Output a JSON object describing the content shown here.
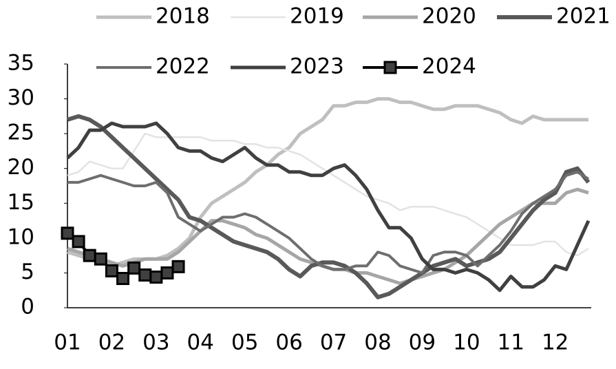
{
  "chart_data": {
    "type": "line",
    "categories": [
      "01",
      null,
      null,
      null,
      "02",
      null,
      null,
      null,
      "03",
      null,
      null,
      null,
      "04",
      null,
      null,
      null,
      "05",
      null,
      null,
      null,
      "06",
      null,
      null,
      null,
      "07",
      null,
      null,
      null,
      "08",
      null,
      null,
      null,
      "09",
      null,
      null,
      null,
      "10",
      null,
      null,
      null,
      "11",
      null,
      null,
      null,
      "12",
      null,
      null,
      null
    ],
    "series": [
      {
        "name": "2018",
        "color": "#bfbfbf",
        "values": [
          8,
          7.5,
          7,
          6.5,
          6,
          6.5,
          7,
          7,
          7,
          7.5,
          8.5,
          10,
          13,
          15,
          16,
          17,
          18,
          19.5,
          20.5,
          22,
          23,
          25,
          26,
          27,
          29,
          29,
          29.5,
          29.5,
          30,
          30,
          29.5,
          29.5,
          29,
          28.5,
          28.5,
          29,
          29,
          29,
          28.5,
          28,
          27,
          26.5,
          27.5,
          27,
          27,
          27,
          27,
          27
        ]
      },
      {
        "name": "2019",
        "color": "#e3e3e3",
        "values": [
          19,
          19.5,
          21,
          20.5,
          20,
          20,
          22.5,
          25,
          24.5,
          24.5,
          24.5,
          24.5,
          24.5,
          24,
          24,
          24,
          23.5,
          23.5,
          23,
          23,
          22.5,
          22,
          21,
          20,
          19,
          18,
          17,
          16,
          15.5,
          15,
          14,
          14.5,
          14.5,
          14.5,
          14,
          13.5,
          13,
          12,
          11,
          10,
          9,
          9,
          9,
          9.5,
          9.5,
          8,
          7.5,
          8.5
        ]
      },
      {
        "name": "2020",
        "color": "#a6a6a6",
        "values": [
          8.5,
          8,
          7.5,
          7,
          6.5,
          6,
          6.5,
          7,
          7,
          7,
          8,
          9.5,
          11,
          12.5,
          12.5,
          12,
          11.5,
          10.5,
          10,
          9,
          8,
          7,
          6.5,
          6,
          5.5,
          5.5,
          5,
          5,
          4.5,
          4,
          3.5,
          4,
          4.5,
          5,
          5.5,
          6.5,
          7.5,
          9,
          10.5,
          12,
          13,
          14,
          15,
          15,
          15,
          16.5,
          17,
          16.5
        ]
      },
      {
        "name": "2021",
        "color": "#595959",
        "values": [
          27,
          27.5,
          27,
          26,
          24.5,
          23,
          21.5,
          20,
          18.5,
          17,
          15.5,
          13,
          12.5,
          11.5,
          10.5,
          9.5,
          9,
          8.5,
          8,
          7,
          5.5,
          4.5,
          6,
          6.5,
          6.5,
          6,
          5,
          3.5,
          1.5,
          2,
          3,
          4,
          5,
          6,
          6.5,
          7,
          6,
          6.5,
          7,
          8,
          10,
          12,
          14,
          15.5,
          16.5,
          19.5,
          20,
          18
        ]
      },
      {
        "name": "2022",
        "color": "#6e6e6e",
        "values": [
          18,
          18,
          18.5,
          19,
          18.5,
          18,
          17.5,
          17.5,
          18,
          16.5,
          13,
          12,
          11,
          12,
          13,
          13,
          13.5,
          13,
          12,
          11,
          10,
          8.5,
          7,
          6,
          5.5,
          5.5,
          6,
          6,
          8,
          7.5,
          6,
          5.5,
          5,
          7.5,
          8,
          8,
          7.5,
          6,
          7.5,
          9,
          11,
          13.5,
          15,
          16,
          17,
          19,
          19.5,
          18.5
        ]
      },
      {
        "name": "2023",
        "color": "#404040",
        "values": [
          21.5,
          23,
          25.5,
          25.5,
          26.5,
          26,
          26,
          26,
          26.5,
          25,
          23,
          22.5,
          22.5,
          21.5,
          21,
          22,
          23,
          21.5,
          20.5,
          20.5,
          19.5,
          19.5,
          19,
          19,
          20,
          20.5,
          19,
          17,
          14,
          11.5,
          11.5,
          10,
          7,
          5.5,
          5.5,
          5,
          5.5,
          5,
          4,
          2.5,
          4.5,
          3,
          3,
          4,
          6,
          5.5,
          9,
          12.5
        ]
      },
      {
        "name": "2024",
        "color": "#000000",
        "marker": "square",
        "values": [
          10.7,
          9.5,
          7.5,
          7,
          5.3,
          4.2,
          5.7,
          4.7,
          4.4,
          5,
          5.9,
          null,
          null,
          null,
          null,
          null,
          null,
          null,
          null,
          null,
          null,
          null,
          null,
          null,
          null,
          null,
          null,
          null,
          null,
          null,
          null,
          null,
          null,
          null,
          null,
          null,
          null,
          null,
          null,
          null,
          null,
          null,
          null,
          null,
          null,
          null,
          null,
          null
        ]
      }
    ],
    "ylim": [
      0,
      35
    ],
    "yticks": [
      0,
      5,
      10,
      15,
      20,
      25,
      30,
      35
    ]
  }
}
